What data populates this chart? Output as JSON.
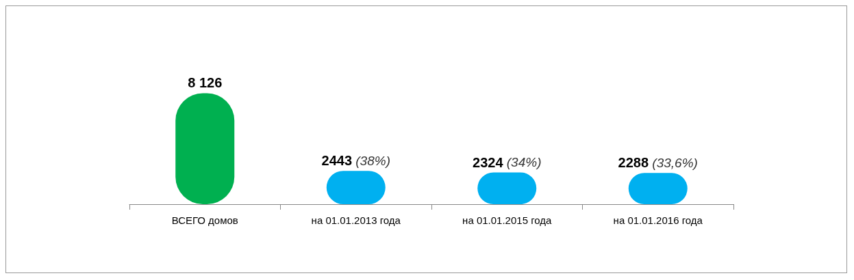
{
  "chart_data": {
    "type": "bar",
    "categories": [
      "ВСЕГО домов",
      "на 01.01.2013 года",
      "на 01.01.2015 года",
      "на 01.01.2016 года"
    ],
    "values": [
      8126,
      2443,
      2324,
      2288
    ],
    "colors": [
      "#00b050",
      "#00b0f0",
      "#00b0f0",
      "#00b0f0"
    ],
    "value_labels": [
      "8 126",
      "2443 (38%)",
      "2324 (34%)",
      "2288 (33,6%)"
    ]
  }
}
